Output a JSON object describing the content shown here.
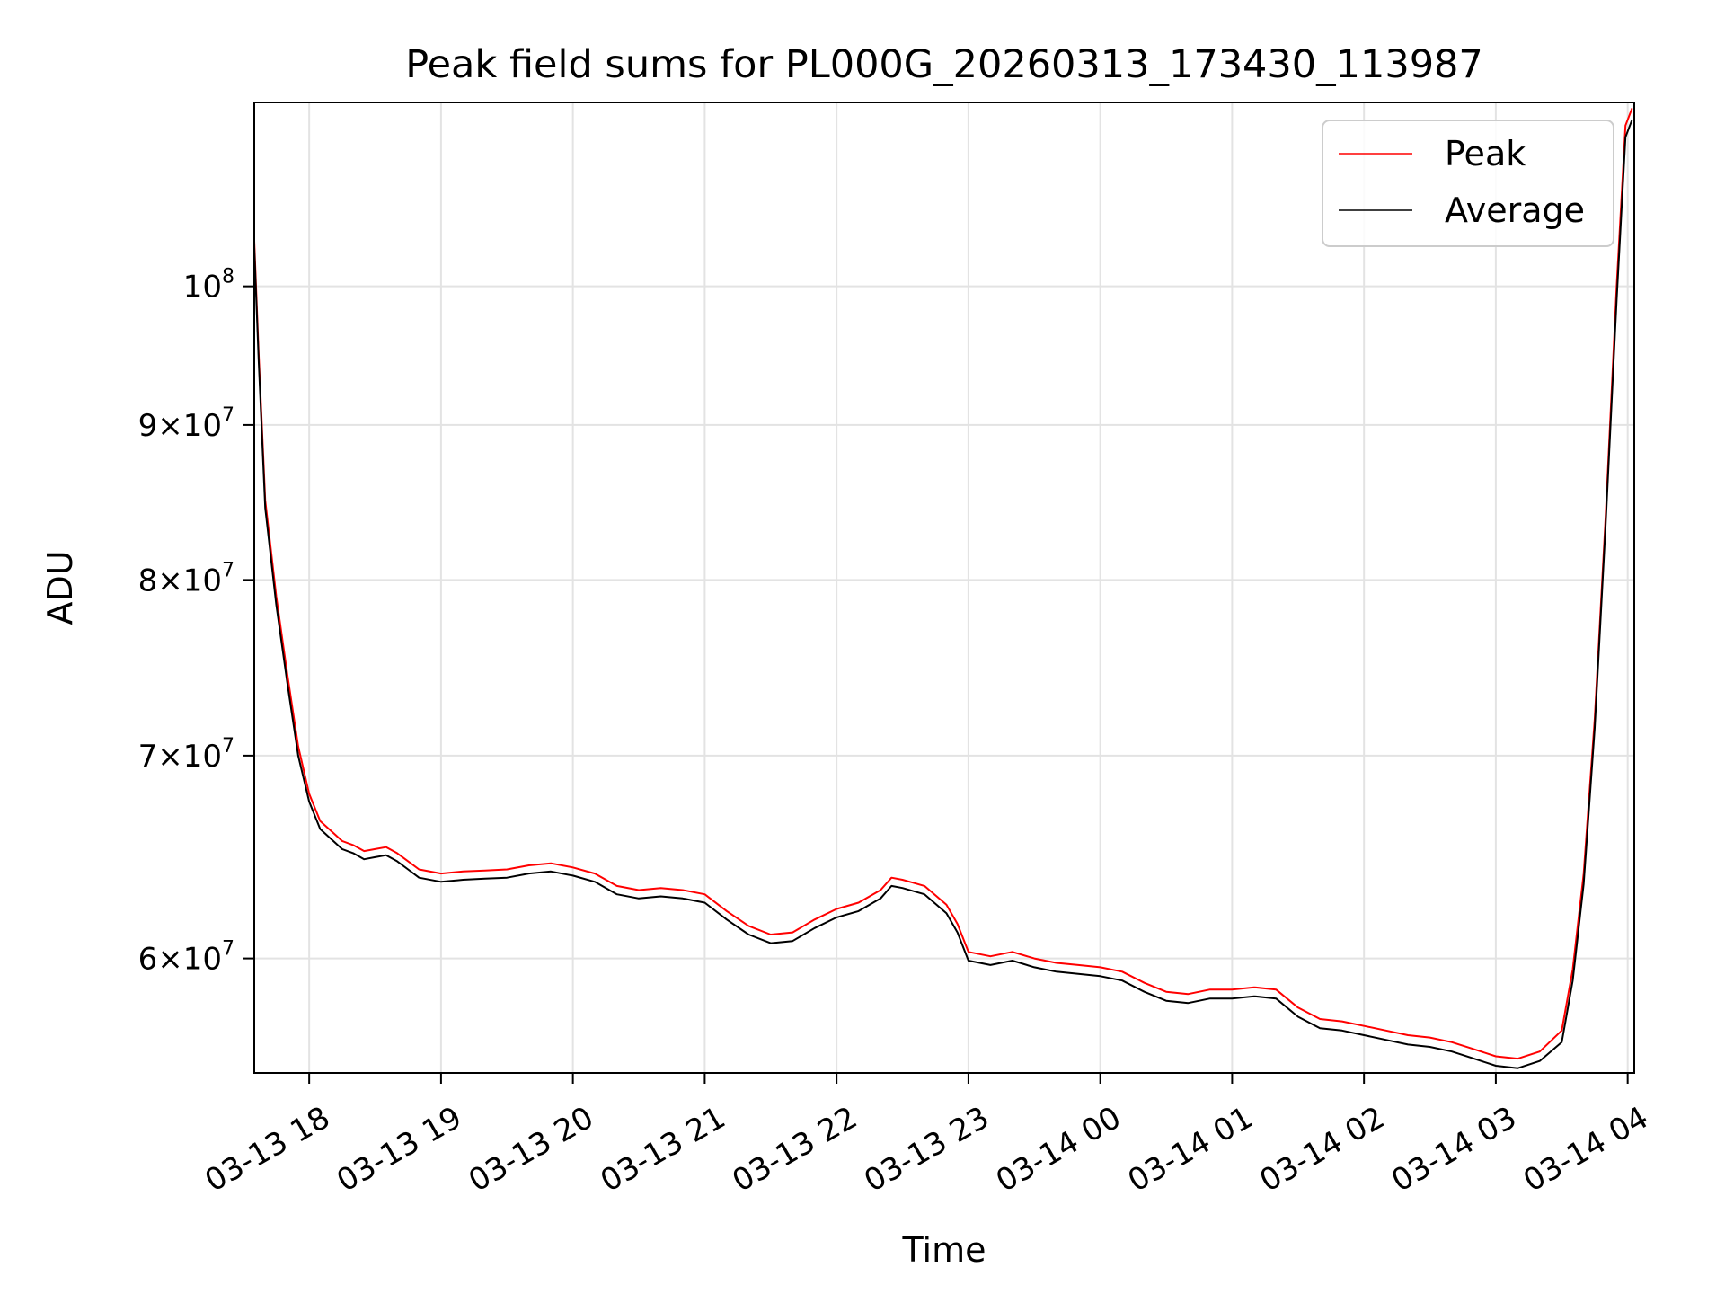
{
  "chart_data": {
    "type": "line",
    "title": "Peak field sums for PL000G_20260313_173430_113987",
    "xlabel": "Time",
    "ylabel": "ADU",
    "y_scale": "log",
    "grid": true,
    "legend_position": "top-right",
    "xlim": [
      "2026-03-13 17:35",
      "2026-03-14 04:03"
    ],
    "ylim": [
      55000000,
      115000000
    ],
    "x_ticks": [
      {
        "label": "03-13 18",
        "value": "2026-03-13 18:00"
      },
      {
        "label": "03-13 19",
        "value": "2026-03-13 19:00"
      },
      {
        "label": "03-13 20",
        "value": "2026-03-13 20:00"
      },
      {
        "label": "03-13 21",
        "value": "2026-03-13 21:00"
      },
      {
        "label": "03-13 22",
        "value": "2026-03-13 22:00"
      },
      {
        "label": "03-13 23",
        "value": "2026-03-13 23:00"
      },
      {
        "label": "03-14 00",
        "value": "2026-03-14 00:00"
      },
      {
        "label": "03-14 01",
        "value": "2026-03-14 01:00"
      },
      {
        "label": "03-14 02",
        "value": "2026-03-14 02:00"
      },
      {
        "label": "03-14 03",
        "value": "2026-03-14 03:00"
      },
      {
        "label": "03-14 04",
        "value": "2026-03-14 04:00"
      }
    ],
    "y_ticks": [
      {
        "mant": "",
        "exp": "8",
        "value": 100000000
      },
      {
        "mant": "9",
        "exp": "7",
        "value": 90000000
      },
      {
        "mant": "8",
        "exp": "7",
        "value": 80000000
      },
      {
        "mant": "7",
        "exp": "7",
        "value": 70000000
      },
      {
        "mant": "6",
        "exp": "7",
        "value": 60000000
      }
    ],
    "series": [
      {
        "name": "Peak",
        "color": "#ff0000",
        "points": [
          [
            "2026-03-13 17:35",
            103500000
          ],
          [
            "2026-03-13 17:37",
            95000000
          ],
          [
            "2026-03-13 17:40",
            85000000
          ],
          [
            "2026-03-13 17:45",
            79000000
          ],
          [
            "2026-03-13 17:50",
            74500000
          ],
          [
            "2026-03-13 17:55",
            70500000
          ],
          [
            "2026-03-13 18:00",
            68000000
          ],
          [
            "2026-03-13 18:05",
            66600000
          ],
          [
            "2026-03-13 18:10",
            66100000
          ],
          [
            "2026-03-13 18:15",
            65600000
          ],
          [
            "2026-03-13 18:20",
            65400000
          ],
          [
            "2026-03-13 18:25",
            65100000
          ],
          [
            "2026-03-13 18:30",
            65200000
          ],
          [
            "2026-03-13 18:35",
            65300000
          ],
          [
            "2026-03-13 18:40",
            65000000
          ],
          [
            "2026-03-13 18:45",
            64600000
          ],
          [
            "2026-03-13 18:50",
            64200000
          ],
          [
            "2026-03-13 19:00",
            64000000
          ],
          [
            "2026-03-13 19:10",
            64100000
          ],
          [
            "2026-03-13 19:20",
            64150000
          ],
          [
            "2026-03-13 19:30",
            64200000
          ],
          [
            "2026-03-13 19:40",
            64400000
          ],
          [
            "2026-03-13 19:50",
            64500000
          ],
          [
            "2026-03-13 20:00",
            64300000
          ],
          [
            "2026-03-13 20:10",
            64000000
          ],
          [
            "2026-03-13 20:20",
            63400000
          ],
          [
            "2026-03-13 20:30",
            63200000
          ],
          [
            "2026-03-13 20:40",
            63300000
          ],
          [
            "2026-03-13 20:50",
            63200000
          ],
          [
            "2026-03-13 21:00",
            63000000
          ],
          [
            "2026-03-13 21:10",
            62200000
          ],
          [
            "2026-03-13 21:20",
            61500000
          ],
          [
            "2026-03-13 21:30",
            61100000
          ],
          [
            "2026-03-13 21:40",
            61200000
          ],
          [
            "2026-03-13 21:50",
            61800000
          ],
          [
            "2026-03-13 22:00",
            62300000
          ],
          [
            "2026-03-13 22:10",
            62600000
          ],
          [
            "2026-03-13 22:20",
            63200000
          ],
          [
            "2026-03-13 22:25",
            63800000
          ],
          [
            "2026-03-13 22:30",
            63700000
          ],
          [
            "2026-03-13 22:40",
            63400000
          ],
          [
            "2026-03-13 22:50",
            62500000
          ],
          [
            "2026-03-13 22:55",
            61600000
          ],
          [
            "2026-03-13 23:00",
            60300000
          ],
          [
            "2026-03-13 23:10",
            60100000
          ],
          [
            "2026-03-13 23:20",
            60300000
          ],
          [
            "2026-03-13 23:30",
            60000000
          ],
          [
            "2026-03-13 23:40",
            59800000
          ],
          [
            "2026-03-13 23:50",
            59700000
          ],
          [
            "2026-03-14 00:00",
            59600000
          ],
          [
            "2026-03-14 00:10",
            59400000
          ],
          [
            "2026-03-14 00:20",
            58900000
          ],
          [
            "2026-03-14 00:30",
            58500000
          ],
          [
            "2026-03-14 00:40",
            58400000
          ],
          [
            "2026-03-14 00:50",
            58600000
          ],
          [
            "2026-03-14 01:00",
            58600000
          ],
          [
            "2026-03-14 01:10",
            58700000
          ],
          [
            "2026-03-14 01:20",
            58600000
          ],
          [
            "2026-03-14 01:30",
            57800000
          ],
          [
            "2026-03-14 01:40",
            57300000
          ],
          [
            "2026-03-14 01:50",
            57200000
          ],
          [
            "2026-03-14 02:00",
            57000000
          ],
          [
            "2026-03-14 02:10",
            56800000
          ],
          [
            "2026-03-14 02:20",
            56600000
          ],
          [
            "2026-03-14 02:30",
            56500000
          ],
          [
            "2026-03-14 02:40",
            56300000
          ],
          [
            "2026-03-14 02:50",
            56000000
          ],
          [
            "2026-03-14 03:00",
            55700000
          ],
          [
            "2026-03-14 03:10",
            55600000
          ],
          [
            "2026-03-14 03:20",
            55900000
          ],
          [
            "2026-03-14 03:30",
            56800000
          ],
          [
            "2026-03-14 03:35",
            59500000
          ],
          [
            "2026-03-14 03:40",
            64000000
          ],
          [
            "2026-03-14 03:45",
            72000000
          ],
          [
            "2026-03-14 03:50",
            84000000
          ],
          [
            "2026-03-14 03:55",
            100000000
          ],
          [
            "2026-03-14 03:59",
            113000000
          ],
          [
            "2026-03-14 04:02",
            114500000
          ]
        ]
      },
      {
        "name": "Average",
        "color": "#000000",
        "points": [
          [
            "2026-03-13 17:35",
            103000000
          ],
          [
            "2026-03-13 17:37",
            94500000
          ],
          [
            "2026-03-13 17:40",
            84500000
          ],
          [
            "2026-03-13 17:45",
            78500000
          ],
          [
            "2026-03-13 17:50",
            74000000
          ],
          [
            "2026-03-13 17:55",
            70000000
          ],
          [
            "2026-03-13 18:00",
            67600000
          ],
          [
            "2026-03-13 18:05",
            66200000
          ],
          [
            "2026-03-13 18:10",
            65700000
          ],
          [
            "2026-03-13 18:15",
            65200000
          ],
          [
            "2026-03-13 18:20",
            65000000
          ],
          [
            "2026-03-13 18:25",
            64700000
          ],
          [
            "2026-03-13 18:30",
            64800000
          ],
          [
            "2026-03-13 18:35",
            64900000
          ],
          [
            "2026-03-13 18:40",
            64600000
          ],
          [
            "2026-03-13 18:45",
            64200000
          ],
          [
            "2026-03-13 18:50",
            63800000
          ],
          [
            "2026-03-13 19:00",
            63600000
          ],
          [
            "2026-03-13 19:10",
            63700000
          ],
          [
            "2026-03-13 19:20",
            63750000
          ],
          [
            "2026-03-13 19:30",
            63800000
          ],
          [
            "2026-03-13 19:40",
            64000000
          ],
          [
            "2026-03-13 19:50",
            64100000
          ],
          [
            "2026-03-13 20:00",
            63900000
          ],
          [
            "2026-03-13 20:10",
            63600000
          ],
          [
            "2026-03-13 20:20",
            63000000
          ],
          [
            "2026-03-13 20:30",
            62800000
          ],
          [
            "2026-03-13 20:40",
            62900000
          ],
          [
            "2026-03-13 20:50",
            62800000
          ],
          [
            "2026-03-13 21:00",
            62600000
          ],
          [
            "2026-03-13 21:10",
            61800000
          ],
          [
            "2026-03-13 21:20",
            61100000
          ],
          [
            "2026-03-13 21:30",
            60700000
          ],
          [
            "2026-03-13 21:40",
            60800000
          ],
          [
            "2026-03-13 21:50",
            61400000
          ],
          [
            "2026-03-13 22:00",
            61900000
          ],
          [
            "2026-03-13 22:10",
            62200000
          ],
          [
            "2026-03-13 22:20",
            62800000
          ],
          [
            "2026-03-13 22:25",
            63400000
          ],
          [
            "2026-03-13 22:30",
            63300000
          ],
          [
            "2026-03-13 22:40",
            63000000
          ],
          [
            "2026-03-13 22:50",
            62100000
          ],
          [
            "2026-03-13 22:55",
            61200000
          ],
          [
            "2026-03-13 23:00",
            59900000
          ],
          [
            "2026-03-13 23:10",
            59700000
          ],
          [
            "2026-03-13 23:20",
            59900000
          ],
          [
            "2026-03-13 23:30",
            59600000
          ],
          [
            "2026-03-13 23:40",
            59400000
          ],
          [
            "2026-03-13 23:50",
            59300000
          ],
          [
            "2026-03-14 00:00",
            59200000
          ],
          [
            "2026-03-14 00:10",
            59000000
          ],
          [
            "2026-03-14 00:20",
            58500000
          ],
          [
            "2026-03-14 00:30",
            58100000
          ],
          [
            "2026-03-14 00:40",
            58000000
          ],
          [
            "2026-03-14 00:50",
            58200000
          ],
          [
            "2026-03-14 01:00",
            58200000
          ],
          [
            "2026-03-14 01:10",
            58300000
          ],
          [
            "2026-03-14 01:20",
            58200000
          ],
          [
            "2026-03-14 01:30",
            57400000
          ],
          [
            "2026-03-14 01:40",
            56900000
          ],
          [
            "2026-03-14 01:50",
            56800000
          ],
          [
            "2026-03-14 02:00",
            56600000
          ],
          [
            "2026-03-14 02:10",
            56400000
          ],
          [
            "2026-03-14 02:20",
            56200000
          ],
          [
            "2026-03-14 02:30",
            56100000
          ],
          [
            "2026-03-14 02:40",
            55900000
          ],
          [
            "2026-03-14 02:50",
            55600000
          ],
          [
            "2026-03-14 03:00",
            55300000
          ],
          [
            "2026-03-14 03:10",
            55200000
          ],
          [
            "2026-03-14 03:20",
            55500000
          ],
          [
            "2026-03-14 03:30",
            56300000
          ],
          [
            "2026-03-14 03:35",
            59000000
          ],
          [
            "2026-03-14 03:40",
            63500000
          ],
          [
            "2026-03-14 03:45",
            71500000
          ],
          [
            "2026-03-14 03:50",
            83500000
          ],
          [
            "2026-03-14 03:55",
            99000000
          ],
          [
            "2026-03-14 03:59",
            112000000
          ],
          [
            "2026-03-14 04:02",
            113500000
          ]
        ]
      }
    ]
  }
}
